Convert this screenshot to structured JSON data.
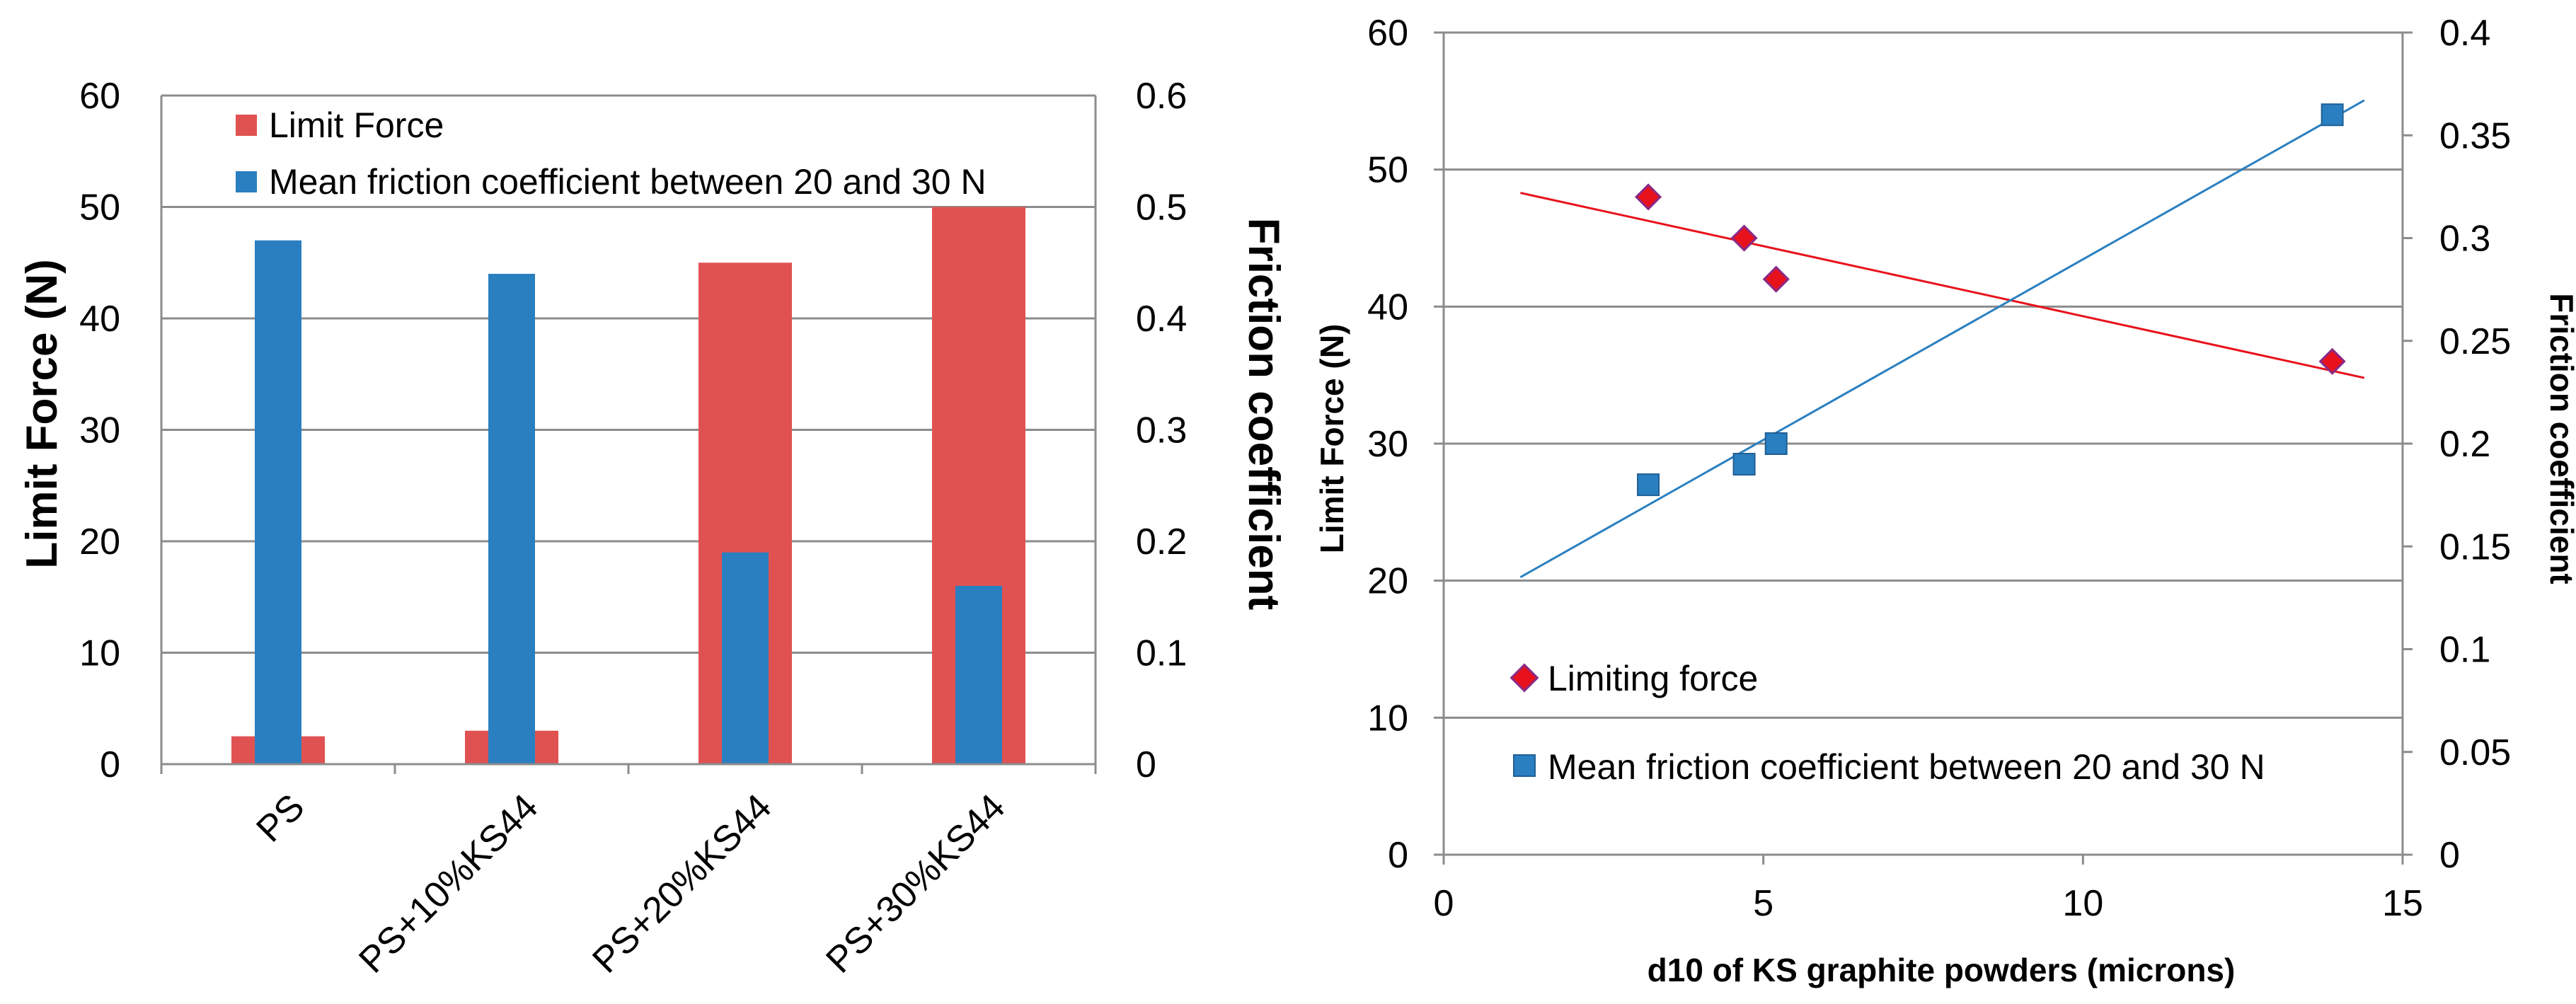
{
  "colors": {
    "red": "#e05252",
    "blue": "#2a7fc0",
    "marker_red": "#e8121c",
    "marker_purple": "#8a2a86",
    "grid": "#8c8c8c"
  },
  "chart_data": [
    {
      "type": "bar",
      "categories": [
        "PS",
        "PS+10%KS44",
        "PS+20%KS44",
        "PS+30%KS44"
      ],
      "series": [
        {
          "name": "Limit Force",
          "axis": "left",
          "values": [
            2.5,
            3,
            45,
            50
          ]
        },
        {
          "name": "Mean friction coefficient between 20 and 30 N",
          "axis": "right",
          "values": [
            0.47,
            0.44,
            0.19,
            0.16
          ]
        }
      ],
      "ylabel": "Limit Force (N)",
      "y2label": "Friction coefficient",
      "ylim": [
        0,
        60
      ],
      "y2lim": [
        0,
        0.6
      ],
      "yticks": [
        "0",
        "10",
        "20",
        "30",
        "40",
        "50",
        "60"
      ],
      "y2ticks": [
        "0",
        "0.1",
        "0.2",
        "0.3",
        "0.4",
        "0.5",
        "0.6"
      ],
      "grid": true,
      "legend": "top-left"
    },
    {
      "type": "scatter",
      "xlabel": "d10 of KS graphite powders (microns)",
      "ylabel": "Limit Force (N)",
      "y2label": "Friction coefficient",
      "xlim": [
        0,
        15
      ],
      "ylim": [
        0,
        60
      ],
      "y2lim": [
        0,
        0.4
      ],
      "xticks": [
        "0",
        "5",
        "10",
        "15"
      ],
      "yticks": [
        "0",
        "10",
        "20",
        "30",
        "40",
        "50",
        "60"
      ],
      "y2ticks": [
        "0",
        "0.05",
        "0.1",
        "0.15",
        "0.2",
        "0.25",
        "0.3",
        "0.35",
        "0.4"
      ],
      "series": [
        {
          "name": "Limiting force",
          "axis": "left",
          "marker": "diamond",
          "x": [
            3.2,
            4.7,
            5.2,
            13.9
          ],
          "y": [
            48,
            45,
            42,
            36
          ],
          "trendline": {
            "x": [
              1.2,
              14.4
            ],
            "y": [
              48.3,
              34.8
            ]
          }
        },
        {
          "name": "Mean friction coefficient between 20 and 30 N",
          "axis": "right",
          "marker": "square",
          "x": [
            3.2,
            4.7,
            5.2,
            13.9
          ],
          "y": [
            0.18,
            0.19,
            0.2,
            0.36
          ],
          "trendline": {
            "x": [
              1.2,
              14.4
            ],
            "y": [
              0.135,
              0.367
            ]
          }
        }
      ],
      "grid": true,
      "legend": "bottom-left"
    }
  ]
}
